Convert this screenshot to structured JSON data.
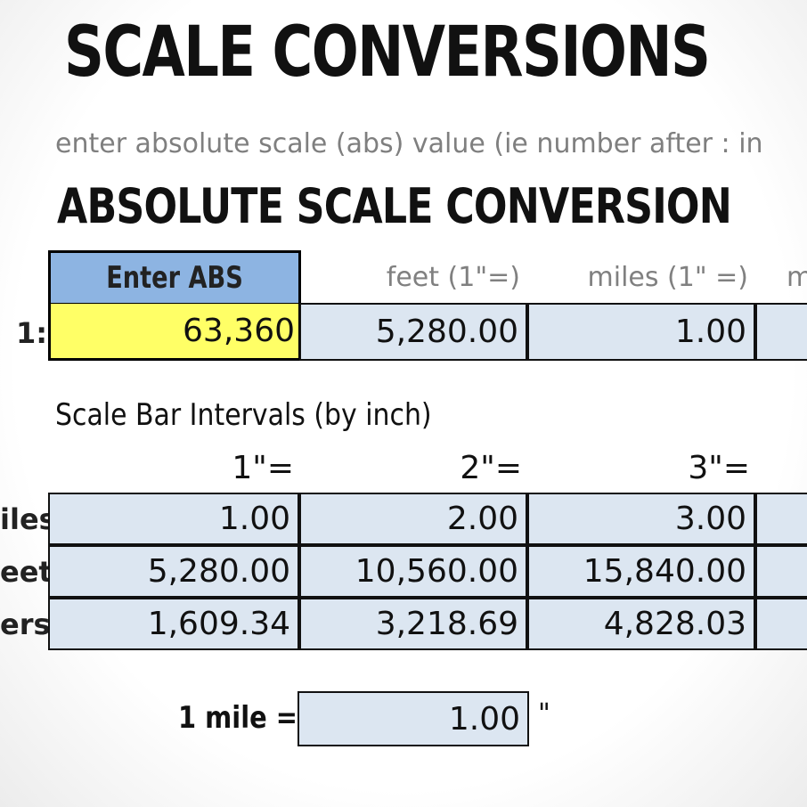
{
  "title": "SCALE CONVERSIONS",
  "instruction": "enter absolute scale (abs) value (ie number after : in",
  "section_title": "ABSOLUTE SCALE CONVERSION",
  "abs_conversion": {
    "input_header": "Enter ABS",
    "row_prefix": "1:",
    "abs_value": "63,360",
    "columns": [
      {
        "header": "feet (1\"=)",
        "value": "5,280.00"
      },
      {
        "header": "miles (1\" =)",
        "value": "1.00"
      },
      {
        "header": "m",
        "value": ""
      }
    ]
  },
  "intervals": {
    "title": "Scale Bar Intervals (by inch)",
    "headers": [
      "1\"=",
      "2\"=",
      "3\"="
    ],
    "rows": [
      {
        "label": "iles",
        "values": [
          "1.00",
          "2.00",
          "3.00"
        ]
      },
      {
        "label": "eet",
        "values": [
          "5,280.00",
          "10,560.00",
          "15,840.00"
        ]
      },
      {
        "label": "ers",
        "values": [
          "1,609.34",
          "3,218.69",
          "4,828.03"
        ]
      }
    ]
  },
  "mile_conversion": {
    "label": "1 mile =",
    "value": "1.00",
    "unit": "\""
  },
  "colors": {
    "header_fill": "#8db4e2",
    "input_fill": "#ffff66",
    "value_fill": "#dce6f1"
  }
}
